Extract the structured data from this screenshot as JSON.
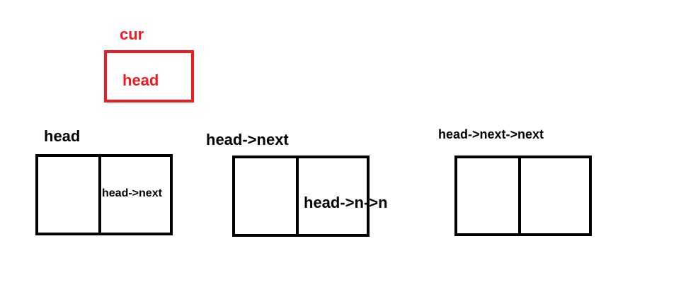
{
  "colors": {
    "pointer": "#ed1c24",
    "node": "#000000"
  },
  "cur_pointer": {
    "label": "cur",
    "value": "head"
  },
  "nodes": [
    {
      "label": "head",
      "next_field_text": "head->next"
    },
    {
      "label": "head->next",
      "next_field_text": "head->n->n"
    },
    {
      "label": "head->next->next",
      "next_field_text": ""
    }
  ]
}
